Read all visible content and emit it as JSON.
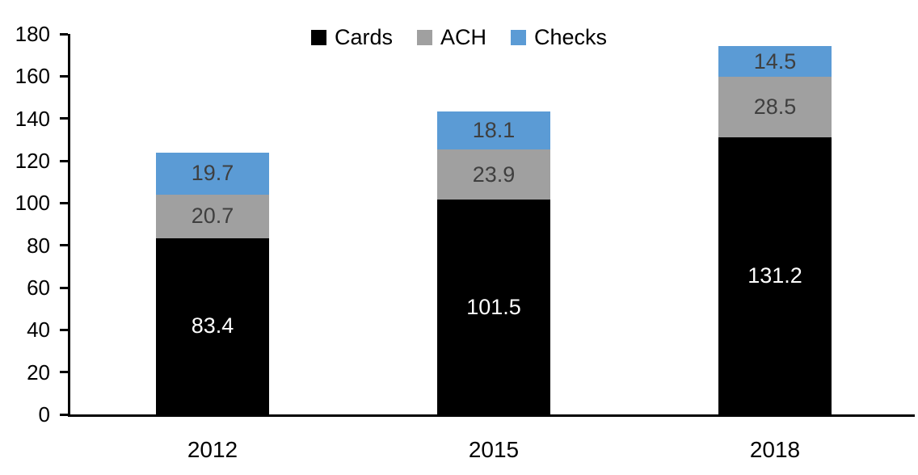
{
  "chart_data": {
    "type": "bar",
    "stacked": true,
    "title": "",
    "xlabel": "",
    "ylabel": "",
    "categories": [
      "2012",
      "2015",
      "2018"
    ],
    "series": [
      {
        "name": "Cards",
        "color": "#000000",
        "label_color": "#ffffff",
        "values": [
          83.4,
          101.5,
          131.2
        ]
      },
      {
        "name": "ACH",
        "color": "#a0a0a0",
        "label_color": "#3f3f3f",
        "values": [
          20.7,
          23.9,
          28.5
        ]
      },
      {
        "name": "Checks",
        "color": "#5b9bd5",
        "label_color": "#3f3f3f",
        "values": [
          19.7,
          18.1,
          14.5
        ]
      }
    ],
    "ylim": [
      0,
      180
    ],
    "ytick_step": 20,
    "ytick_labels": [
      "0",
      "20",
      "40",
      "60",
      "80",
      "100",
      "120",
      "140",
      "160",
      "180"
    ],
    "data_labels_visible": true,
    "legend_position": "top-center",
    "grid": false,
    "axis_color": "#000000",
    "background_color": "#ffffff"
  }
}
